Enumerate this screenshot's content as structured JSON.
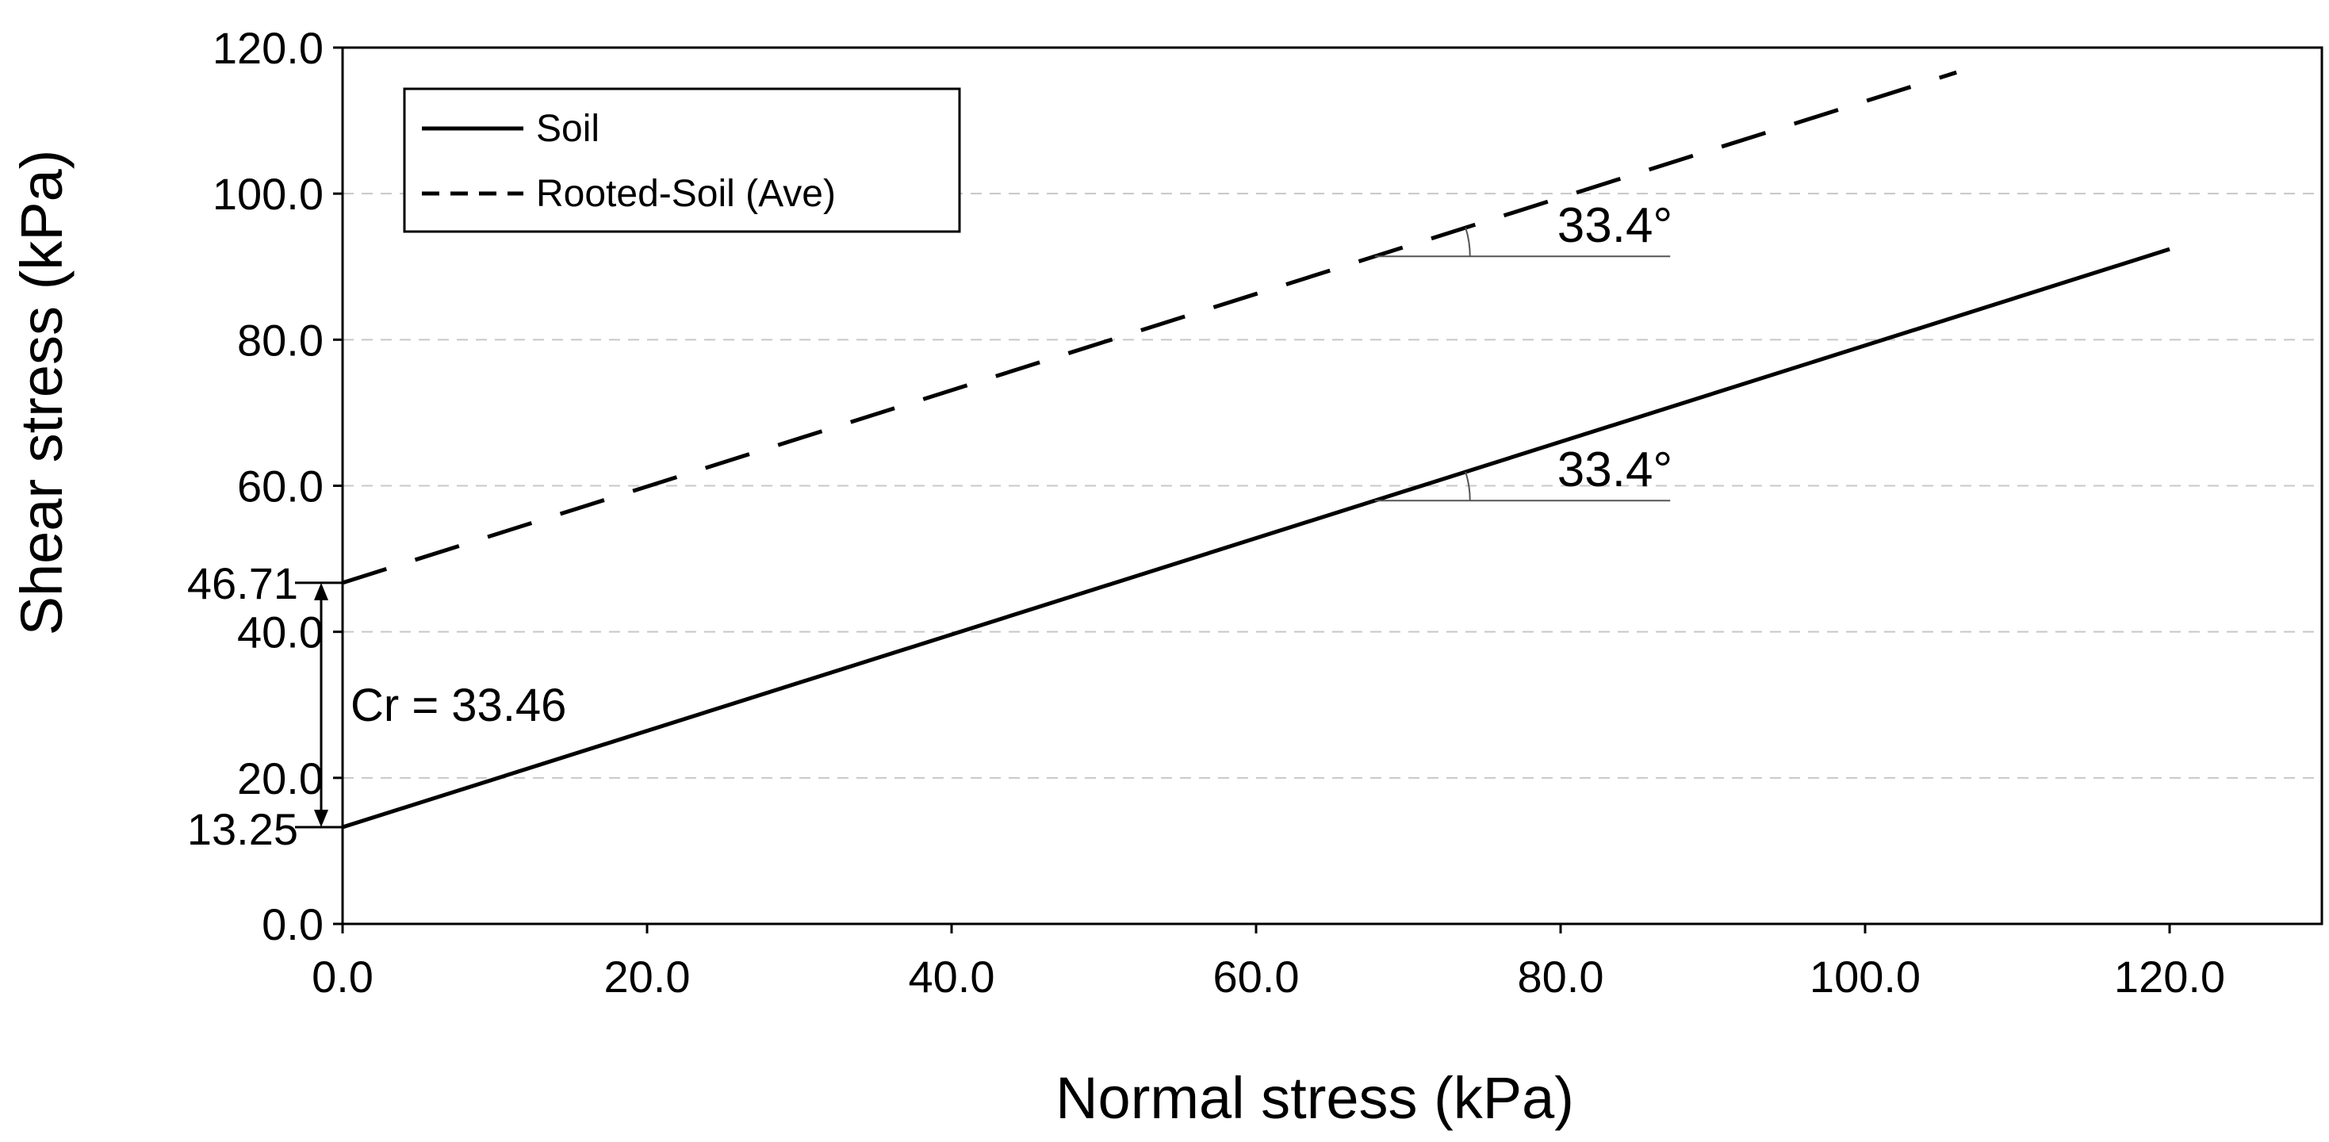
{
  "chart_data": {
    "type": "line",
    "title": "",
    "xlabel": "Normal stress (kPa)",
    "ylabel": "Shear stress (kPa)",
    "xlim": [
      0,
      130
    ],
    "ylim": [
      0,
      120
    ],
    "x_ticks": [
      "0.0",
      "20.0",
      "40.0",
      "60.0",
      "80.0",
      "100.0",
      "120.0"
    ],
    "x_tick_values": [
      0,
      20,
      40,
      60,
      80,
      100,
      120
    ],
    "y_ticks": [
      "0.0",
      "20.0",
      "40.0",
      "60.0",
      "80.0",
      "100.0",
      "120.0"
    ],
    "y_tick_values": [
      0,
      20,
      40,
      60,
      80,
      100,
      120
    ],
    "grid": {
      "y": true,
      "x": false,
      "style": "dashed"
    },
    "legend_position": "top-left",
    "series": [
      {
        "name": "Soil",
        "style": "solid",
        "x": [
          0,
          120
        ],
        "y": [
          13.25,
          92.4
        ]
      },
      {
        "name": "Rooted-Soil (Ave)",
        "style": "dashed",
        "x": [
          0,
          106
        ],
        "y": [
          46.71,
          116.6
        ]
      }
    ],
    "annotations": {
      "intercept_top": {
        "label": "46.71",
        "value": 46.71
      },
      "intercept_bottom": {
        "label": "13.25",
        "value": 13.25
      },
      "cohesion": {
        "label": "Cr = 33.46"
      },
      "angle_rooted": {
        "label": "33.4°",
        "x_start": 67.8,
        "x_end": 87.2
      },
      "angle_soil": {
        "label": "33.4°",
        "x_start": 67.8,
        "x_end": 87.2
      }
    },
    "colors": {
      "line": "#000000",
      "grid": "#c8c8c8",
      "axis": "#000000"
    }
  }
}
